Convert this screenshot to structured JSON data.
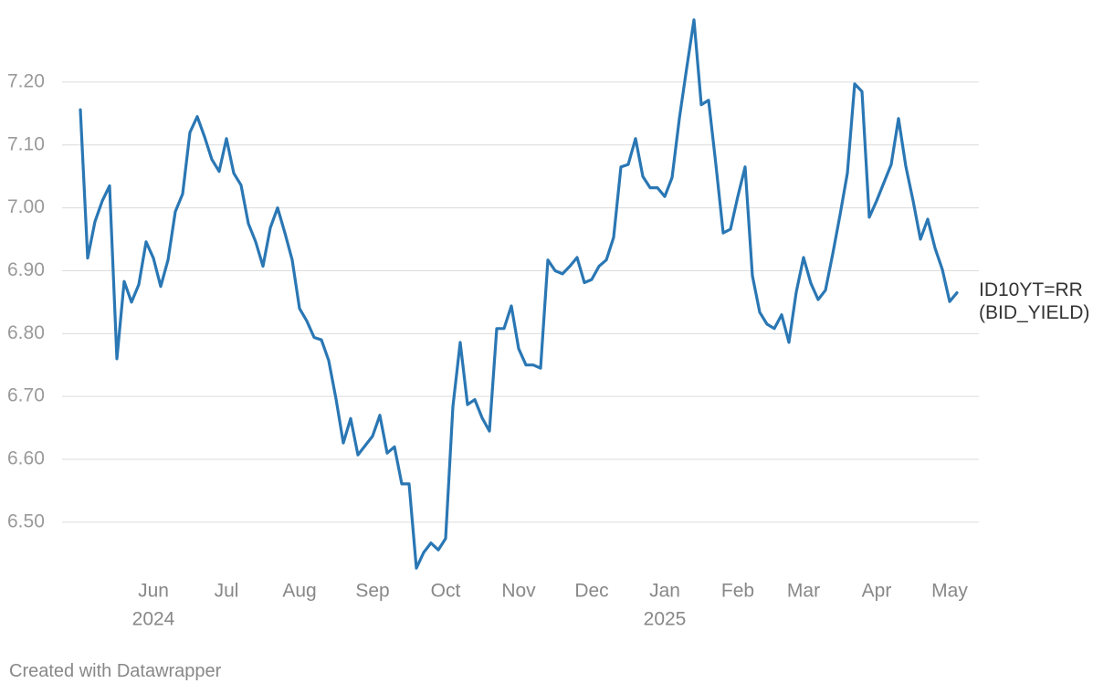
{
  "chart_data": {
    "type": "line",
    "categories": [
      null,
      null,
      null,
      null,
      null,
      null,
      null,
      null,
      null,
      null,
      "Jun",
      null,
      null,
      null,
      null,
      null,
      null,
      null,
      null,
      null,
      "Jul",
      null,
      null,
      null,
      null,
      null,
      null,
      null,
      null,
      null,
      "Aug",
      null,
      null,
      null,
      null,
      null,
      null,
      null,
      null,
      null,
      "Sep",
      null,
      null,
      null,
      null,
      null,
      null,
      null,
      null,
      null,
      "Oct",
      null,
      null,
      null,
      null,
      null,
      null,
      null,
      null,
      null,
      "Nov",
      null,
      null,
      null,
      null,
      null,
      null,
      null,
      null,
      null,
      "Dec",
      null,
      null,
      null,
      null,
      null,
      null,
      null,
      null,
      null,
      "Jan",
      null,
      null,
      null,
      null,
      null,
      null,
      null,
      null,
      null,
      "Feb",
      null,
      null,
      null,
      null,
      null,
      null,
      null,
      null,
      "Mar",
      null,
      null,
      null,
      null,
      null,
      null,
      null,
      null,
      null,
      "Apr",
      null,
      null,
      null,
      null,
      null,
      null,
      null,
      null,
      null,
      "May",
      null
    ],
    "year_labels": [
      {
        "category": "Jun",
        "label": "2024"
      },
      {
        "category": "Jan",
        "label": "2025"
      }
    ],
    "series": [
      {
        "name": "ID10YT=RR (BID_YIELD)",
        "color": "#2a77b4",
        "values": [
          7.156,
          6.92,
          6.978,
          7.011,
          7.035,
          6.76,
          6.883,
          6.85,
          6.878,
          6.946,
          6.92,
          6.875,
          6.917,
          6.994,
          7.022,
          7.12,
          7.145,
          7.113,
          7.077,
          7.058,
          7.11,
          7.055,
          7.036,
          6.975,
          6.946,
          6.907,
          6.968,
          7.0,
          6.96,
          6.917,
          6.84,
          6.82,
          6.794,
          6.79,
          6.757,
          6.696,
          6.626,
          6.665,
          6.607,
          6.622,
          6.637,
          6.67,
          6.61,
          6.62,
          6.561,
          6.561,
          6.427,
          6.452,
          6.467,
          6.456,
          6.474,
          6.684,
          6.786,
          6.687,
          6.695,
          6.666,
          6.645,
          6.808,
          6.808,
          6.844,
          6.776,
          6.75,
          6.75,
          6.745,
          6.917,
          6.9,
          6.895,
          6.907,
          6.921,
          6.881,
          6.886,
          6.907,
          6.917,
          6.953,
          7.065,
          7.069,
          7.11,
          7.05,
          7.032,
          7.032,
          7.018,
          7.048,
          7.142,
          7.222,
          7.299,
          7.164,
          7.171,
          7.069,
          6.96,
          6.966,
          7.018,
          7.065,
          6.892,
          6.834,
          6.815,
          6.808,
          6.83,
          6.786,
          6.866,
          6.921,
          6.88,
          6.854,
          6.869,
          6.927,
          6.989,
          7.055,
          7.197,
          7.185,
          6.985,
          7.011,
          7.04,
          7.069,
          7.142,
          7.066,
          7.011,
          6.95,
          6.982,
          6.936,
          6.902,
          6.851,
          6.865
        ]
      }
    ],
    "ylim": [
      6.42,
      7.3
    ],
    "yticks": [
      {
        "value": 6.5,
        "label": "6.50"
      },
      {
        "value": 6.6,
        "label": "6.60"
      },
      {
        "value": 6.7,
        "label": "6.70"
      },
      {
        "value": 6.8,
        "label": "6.80"
      },
      {
        "value": 6.9,
        "label": "6.90"
      },
      {
        "value": 7.0,
        "label": "7.00"
      },
      {
        "value": 7.1,
        "label": "7.10"
      },
      {
        "value": 7.2,
        "label": "7.20"
      }
    ],
    "grid": true,
    "source": "Created with Datawrapper"
  }
}
